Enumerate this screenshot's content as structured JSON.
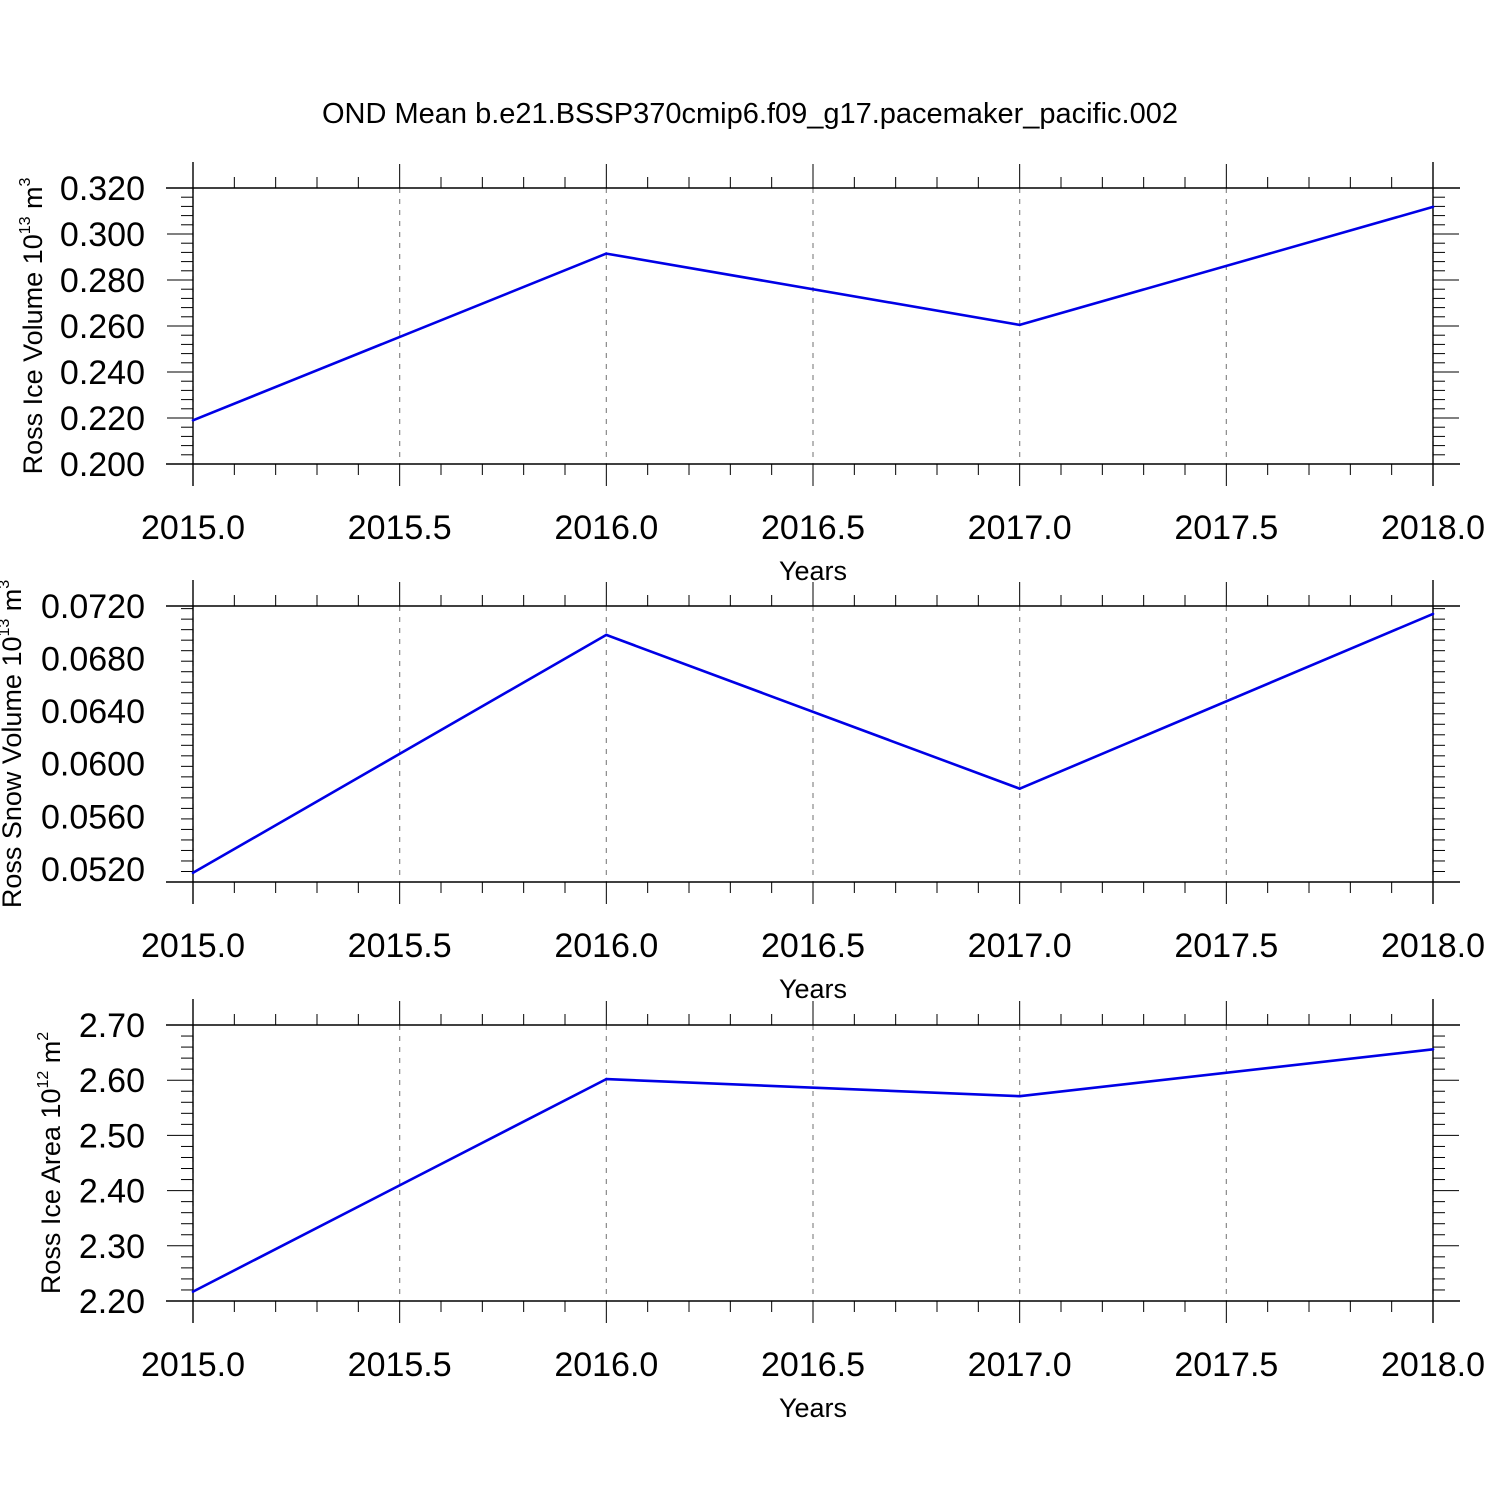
{
  "title": "OND Mean b.e21.BSSP370cmip6.f09_g17.pacemaker_pacific.002",
  "colors": {
    "line": "#0000e6",
    "axis": "#000000",
    "grid": "#888888"
  },
  "chart_data": [
    {
      "type": "line",
      "xlabel": "Years",
      "ylabel": {
        "text": "Ross Ice Volume 10",
        "sup1": "13",
        "unit": " m",
        "sup2": "3"
      },
      "xlim": [
        2015.0,
        2018.0
      ],
      "ylim": [
        0.2,
        0.32
      ],
      "x_ticks": [
        "2015.0",
        "2015.5",
        "2016.0",
        "2016.5",
        "2017.0",
        "2017.5",
        "2018.0"
      ],
      "y_ticks": [
        "0.200",
        "0.220",
        "0.240",
        "0.260",
        "0.280",
        "0.300",
        "0.320"
      ],
      "grid_x": true,
      "series": [
        {
          "x": [
            2015,
            2016,
            2017,
            2018
          ],
          "y": [
            0.219,
            0.2915,
            0.2605,
            0.3118
          ]
        }
      ]
    },
    {
      "type": "line",
      "xlabel": "Years",
      "ylabel": {
        "text": "Ross Snow Volume 10",
        "sup1": "13",
        "unit": " m",
        "sup2": "3"
      },
      "xlim": [
        2015.0,
        2018.0
      ],
      "ylim": [
        0.051,
        0.072
      ],
      "x_ticks": [
        "2015.0",
        "2015.5",
        "2016.0",
        "2016.5",
        "2017.0",
        "2017.5",
        "2018.0"
      ],
      "y_ticks": [
        "0.0520",
        "0.0560",
        "0.0600",
        "0.0640",
        "0.0680",
        "0.0720"
      ],
      "grid_x": true,
      "series": [
        {
          "x": [
            2015,
            2016,
            2017,
            2018
          ],
          "y": [
            0.0517,
            0.0698,
            0.0581,
            0.0714
          ]
        }
      ]
    },
    {
      "type": "line",
      "xlabel": "Years",
      "ylabel": {
        "text": "Ross Ice Area 10",
        "sup1": "12",
        "unit": " m",
        "sup2": "2"
      },
      "xlim": [
        2015.0,
        2018.0
      ],
      "ylim": [
        2.2,
        2.7
      ],
      "x_ticks": [
        "2015.0",
        "2015.5",
        "2016.0",
        "2016.5",
        "2017.0",
        "2017.5",
        "2018.0"
      ],
      "y_ticks": [
        "2.20",
        "2.30",
        "2.40",
        "2.50",
        "2.60",
        "2.70"
      ],
      "grid_x": true,
      "series": [
        {
          "x": [
            2015,
            2016,
            2017,
            2018
          ],
          "y": [
            2.217,
            2.602,
            2.571,
            2.656
          ]
        }
      ]
    }
  ]
}
